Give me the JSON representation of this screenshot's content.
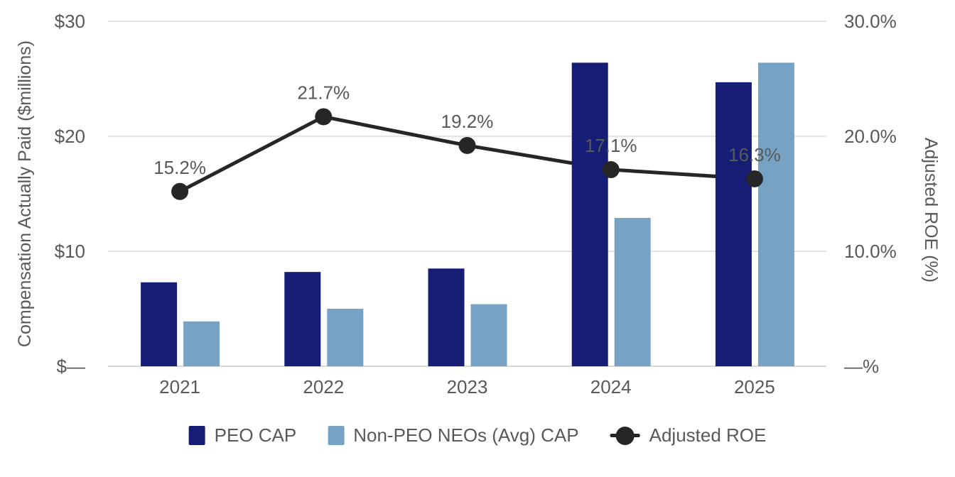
{
  "chart_data": {
    "type": "bar",
    "subtype": "grouped-bars-with-line-overlay",
    "title": "",
    "categories": [
      "2021",
      "2022",
      "2023",
      "2024",
      "2025"
    ],
    "series": [
      {
        "name": "PEO CAP",
        "type": "bar",
        "axis": "left",
        "values": [
          7.3,
          8.2,
          8.5,
          26.4,
          24.7
        ]
      },
      {
        "name": "Non-PEO NEOs (Avg) CAP",
        "type": "bar",
        "axis": "left",
        "values": [
          3.9,
          5.0,
          5.4,
          12.9,
          26.4
        ]
      },
      {
        "name": "Adjusted ROE",
        "type": "line",
        "axis": "right",
        "values": [
          15.2,
          21.7,
          19.2,
          17.1,
          16.3
        ],
        "point_labels": [
          "15.2%",
          "21.7%",
          "19.2%",
          "17.1%",
          "16.3%"
        ]
      }
    ],
    "left_axis": {
      "title": "Compensation Actually Paid ($millions)",
      "range": [
        0,
        30
      ]
    },
    "right_axis": {
      "title": "Adjusted ROE (%)",
      "range": [
        0,
        30
      ]
    },
    "axis_ticks": [
      {
        "value": 0,
        "left_label": "$—",
        "right_label": "—%"
      },
      {
        "value": 10,
        "left_label": "$10",
        "right_label": "10.0%"
      },
      {
        "value": 20,
        "left_label": "$20",
        "right_label": "20.0%"
      },
      {
        "value": 30,
        "left_label": "$30",
        "right_label": "30.0%"
      }
    ],
    "grid": true,
    "legend_position": "bottom",
    "legend": [
      {
        "label": "PEO CAP",
        "marker": "square"
      },
      {
        "label": "Non-PEO NEOs (Avg) CAP",
        "marker": "square"
      },
      {
        "label": "Adjusted ROE",
        "marker": "line-dot"
      }
    ]
  },
  "colors": {
    "peo_bar": "#151d75",
    "non_peo_bar": "#76a3c5",
    "roe_line": "#262626",
    "text": "#595959",
    "grid_line": "#e4e4e4",
    "axis_line": "#d8d8d8",
    "background": "#ffffff"
  }
}
